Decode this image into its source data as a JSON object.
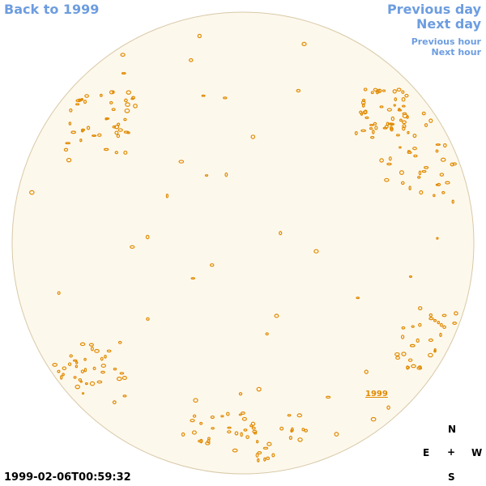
{
  "nav": {
    "back": "Back to 1999",
    "previous_day": "Previous day",
    "next_day": "Next day",
    "previous_hour": "Previous hour",
    "next_hour": "Next hour"
  },
  "disk": {
    "year_link": "1999"
  },
  "timestamp": "1999-02-06T00:59:32",
  "compass": {
    "north": "N",
    "east": "E",
    "center": "+",
    "west": "W",
    "south": "S"
  }
}
